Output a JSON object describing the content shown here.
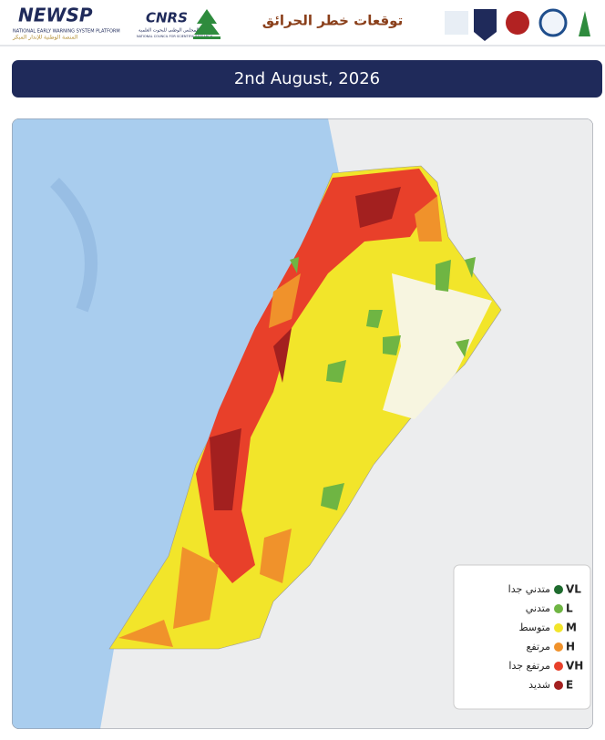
{
  "header": {
    "logo_name": "NEWSP",
    "logo_subtitle": "NATIONAL EARLY WARNING SYSTEM PLATFORM",
    "logo_subtitle_ar": "المنصة الوطنية للإنذار المبكر",
    "cnrs": "CNRS",
    "cnrs_ar": "المجلس الوطني للبحوث العلمية",
    "cnrs_en": "NATIONAL COUNCIL FOR SCIENTIFIC RESEARCH",
    "title": "توقعات خطر الحرائق"
  },
  "date": "2nd August, 2026",
  "legend": [
    {
      "code": "VL",
      "label": "متدني جدا",
      "color": "#1e6b2e"
    },
    {
      "code": "L",
      "label": "متدني",
      "color": "#6fb543"
    },
    {
      "code": "M",
      "label": "متوسط",
      "color": "#f2e52a"
    },
    {
      "code": "H",
      "label": "مرتفع",
      "color": "#f0922b"
    },
    {
      "code": "VH",
      "label": "مرتفع جدا",
      "color": "#e8402a"
    },
    {
      "code": "E",
      "label": "شديد",
      "color": "#a3201f"
    }
  ]
}
